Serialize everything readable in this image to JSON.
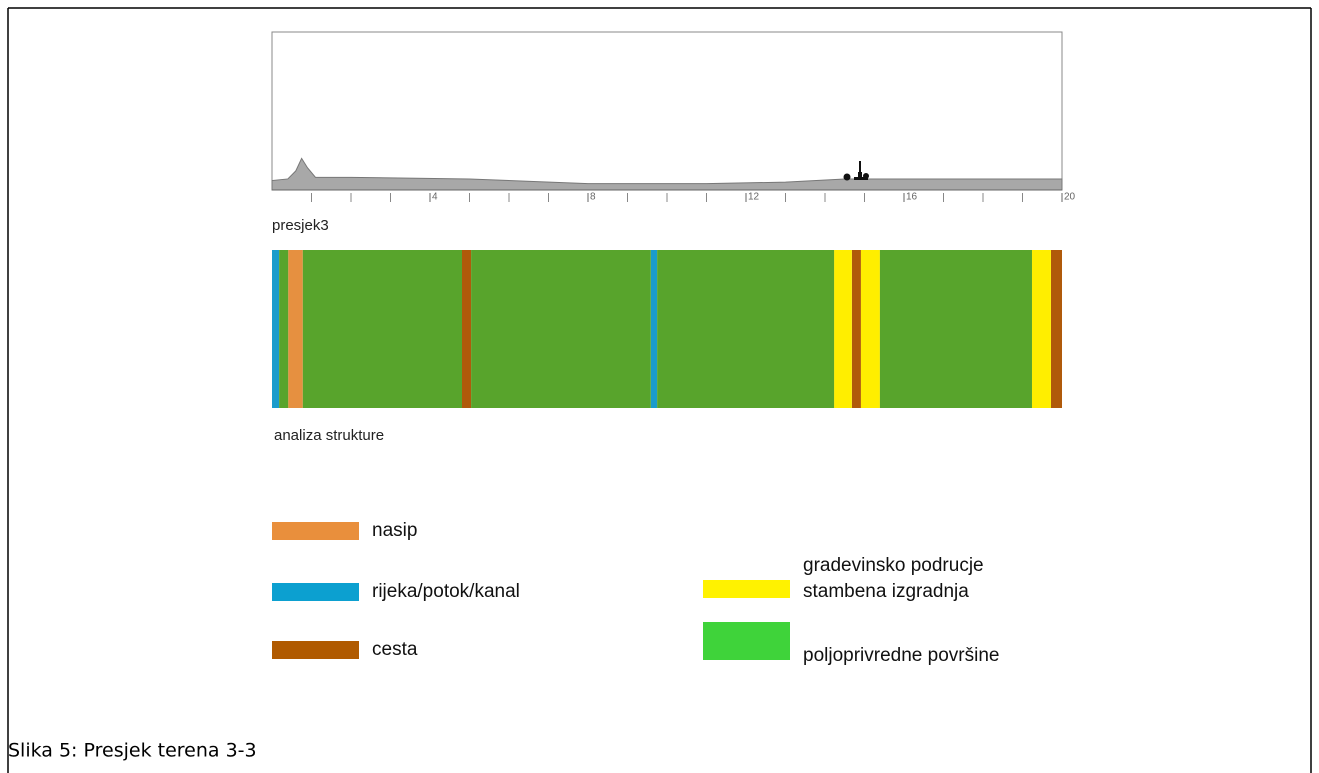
{
  "profile": {
    "label": "presjek3",
    "xlim": [
      0,
      20
    ],
    "ylim": [
      0,
      100
    ],
    "xticks": [
      4,
      8,
      12,
      16,
      20
    ],
    "xminor": [
      1,
      2,
      3,
      5,
      6,
      7,
      9,
      10,
      11,
      13,
      14,
      15,
      17,
      18,
      19
    ],
    "x": [
      0,
      0.4,
      0.6,
      0.75,
      0.9,
      1.1,
      2,
      5,
      8,
      9,
      11,
      13,
      14.5,
      18,
      20
    ],
    "y": [
      6,
      7,
      12,
      20,
      14,
      8,
      8,
      7,
      4,
      4,
      4,
      5,
      7,
      7,
      7
    ]
  },
  "structure": {
    "label": "analiza strukture"
  },
  "legend": [
    {
      "label": [
        "nasip"
      ],
      "color": "#e98f3c",
      "strip_color": "#e69040",
      "segments": [
        [
          0.41,
          0.78
        ]
      ]
    },
    {
      "label": [
        "rijeka/potok/kanal"
      ],
      "color": "#0ca0d0",
      "strip_color": "#1a9ccc",
      "segments": [
        [
          0,
          0.18
        ],
        [
          9.59,
          9.75
        ]
      ]
    },
    {
      "label": [
        "cesta"
      ],
      "color": "#b05a00",
      "strip_color": "#b05a0a",
      "segments": [
        [
          4.81,
          5.04
        ],
        [
          14.68,
          14.91
        ],
        [
          19.72,
          20
        ]
      ]
    },
    {
      "label": [
        "gradevinsko podrucje",
        "stambena izgradnja"
      ],
      "color": "#fff200",
      "strip_color": "#ffee00",
      "segments": [
        [
          14.23,
          14.68
        ],
        [
          14.91,
          15.39
        ],
        [
          19.24,
          19.72
        ]
      ]
    },
    {
      "label": [
        "poljoprivredne površine"
      ],
      "color": "#3fd33a",
      "strip_color": "#58a42c",
      "segments": [
        [
          0.18,
          0.41
        ],
        [
          0.78,
          4.81
        ],
        [
          5.04,
          9.59
        ],
        [
          9.75,
          14.23
        ],
        [
          15.39,
          19.24
        ]
      ]
    }
  ],
  "caption": "Slika 5: Presjek terena 3-3"
}
